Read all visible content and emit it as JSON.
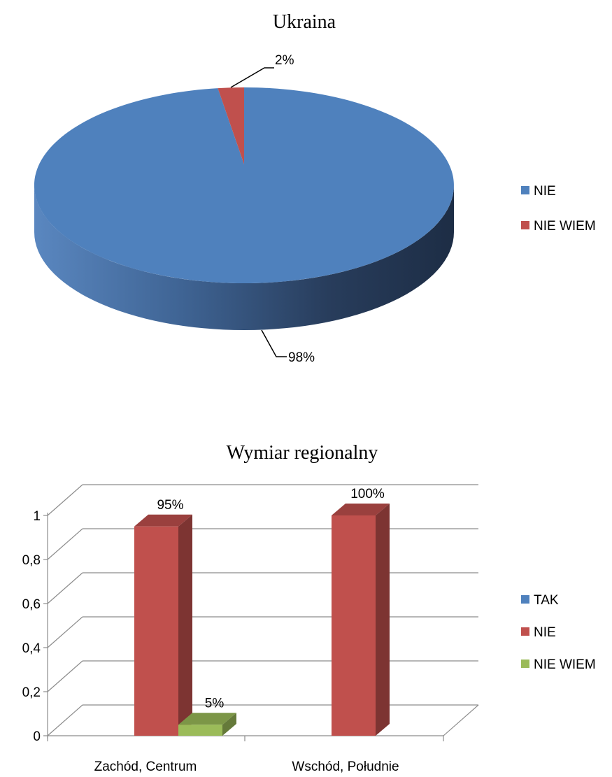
{
  "chart_data": [
    {
      "type": "pie",
      "title": "Ukraina",
      "slices": [
        {
          "label": "NIE",
          "value": 98,
          "display": "98%",
          "color": "#4F81BD"
        },
        {
          "label": "NIE WIEM",
          "value": 2,
          "display": "2%",
          "color": "#C0504D"
        }
      ],
      "legend": "right"
    },
    {
      "type": "bar",
      "title": "Wymiar regionalny",
      "categories": [
        "Zachód, Centrum",
        "Wschód, Południe"
      ],
      "series": [
        {
          "name": "TAK",
          "color": "#4F81BD",
          "values": [
            0,
            0
          ],
          "labels": [
            "",
            ""
          ]
        },
        {
          "name": "NIE",
          "color": "#C0504D",
          "values": [
            0.95,
            1.0
          ],
          "labels": [
            "95%",
            "100%"
          ]
        },
        {
          "name": "NIE WIEM",
          "color": "#9BBB59",
          "values": [
            0.05,
            0
          ],
          "labels": [
            "5%",
            ""
          ]
        }
      ],
      "yticks": [
        "0",
        "0,2",
        "0,4",
        "0,6",
        "0,8",
        "1"
      ],
      "ylim": [
        0,
        1
      ],
      "grid": true,
      "legend": "right"
    }
  ]
}
